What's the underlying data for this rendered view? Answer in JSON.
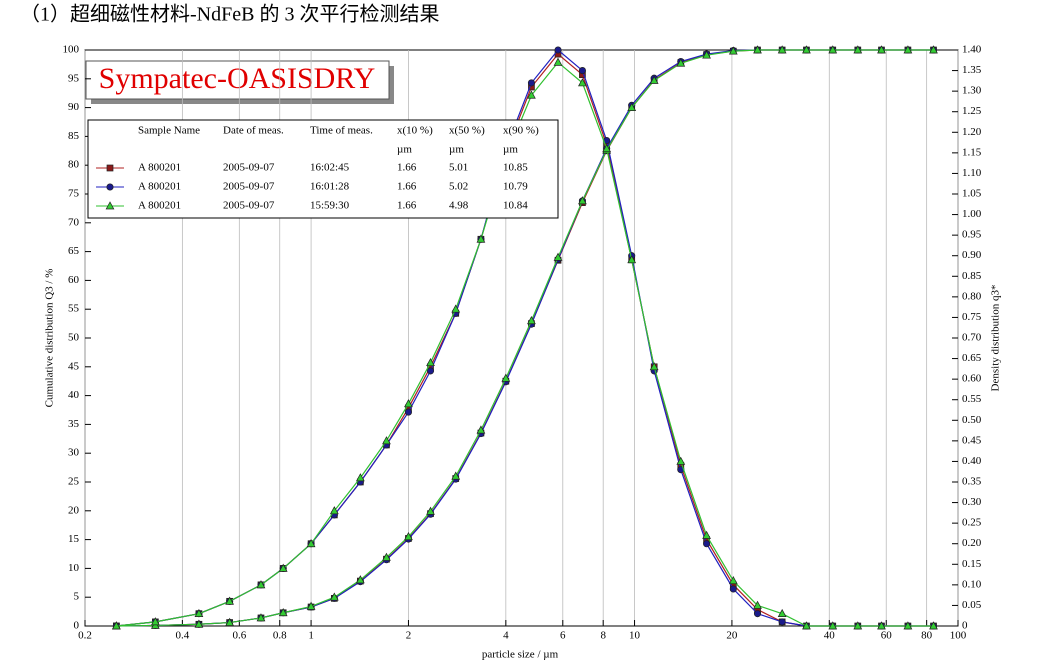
{
  "heading": "（1）超细磁性材料-NdFeB 的 3 次平行检测结果",
  "chart_data": {
    "type": "line",
    "badge": "Sympatec-OASISDRY",
    "xlabel": "particle size / µm",
    "ylabel": "Cumulative distribution Q3 / %",
    "y2label": "Density distribution q3*",
    "xscale": "log",
    "grid": true,
    "xlim": [
      0.2,
      100
    ],
    "xticks": [
      0.2,
      0.4,
      0.6,
      0.8,
      1,
      2,
      4,
      6,
      8,
      10,
      20,
      40,
      60,
      80,
      100
    ],
    "ylim": [
      0,
      100
    ],
    "yticks": [
      0,
      5,
      10,
      15,
      20,
      25,
      30,
      35,
      40,
      45,
      50,
      55,
      60,
      65,
      70,
      75,
      80,
      85,
      90,
      95,
      100
    ],
    "y2lim": [
      0,
      1.4
    ],
    "y2ticks": [
      0,
      0.05,
      {
        "value": 0.1,
        "label": "0.10"
      },
      0.15,
      {
        "value": 0.2,
        "label": "0.20"
      },
      0.25,
      {
        "value": 0.3,
        "label": "0.30"
      },
      0.35,
      {
        "value": 0.4,
        "label": "0.40"
      },
      0.45,
      {
        "value": 0.5,
        "label": "0.50"
      },
      0.55,
      {
        "value": 0.6,
        "label": "0.60"
      },
      0.65,
      {
        "value": 0.7,
        "label": "0.70"
      },
      0.75,
      {
        "value": 0.8,
        "label": "0.80"
      },
      0.85,
      {
        "value": 0.9,
        "label": "0.90"
      },
      0.95,
      {
        "value": 1,
        "label": "1.00"
      },
      1.05,
      {
        "value": 1.1,
        "label": "1.10"
      },
      1.15,
      {
        "value": 1.2,
        "label": "1.20"
      },
      1.25,
      {
        "value": 1.3,
        "label": "1.30"
      },
      1.35,
      {
        "value": 1.4,
        "label": "1.40"
      }
    ],
    "x": [
      0.25,
      0.33,
      0.45,
      0.56,
      0.7,
      0.82,
      1.0,
      1.18,
      1.42,
      1.71,
      2.0,
      2.34,
      2.8,
      3.35,
      4.0,
      4.8,
      5.8,
      6.9,
      8.2,
      9.8,
      11.5,
      13.9,
      16.7,
      20.2,
      24,
      28.6,
      34,
      41,
      49,
      58,
      70,
      84
    ],
    "legend_columns": [
      "Sample Name",
      "Date of meas.",
      "Time of meas.",
      "x(10 %)",
      "x(50 %)",
      "x(90 %)"
    ],
    "legend_units": [
      "µm",
      "µm",
      "µm"
    ],
    "samples": [
      {
        "name": "A 800201",
        "date": "2005-09-07",
        "time": "16:02:45",
        "x10": 1.66,
        "x50": 5.01,
        "x90": 10.85,
        "color": "#b02020",
        "marker": "square",
        "marker_color": "#8b1a1a",
        "cumulative": [
          0,
          0.1,
          0.3,
          0.6,
          1.4,
          2.3,
          3.3,
          4.8,
          7.8,
          11.6,
          15.2,
          19.5,
          25.6,
          33.5,
          42.5,
          52.5,
          63.5,
          73.5,
          82.5,
          90,
          94.8,
          97.8,
          99.2,
          99.8,
          100,
          100,
          100,
          100,
          100,
          100,
          100,
          100
        ],
        "density": [
          0,
          0.01,
          0.03,
          0.06,
          0.1,
          0.14,
          0.2,
          0.27,
          0.35,
          0.44,
          0.53,
          0.63,
          0.76,
          0.94,
          1.15,
          1.31,
          1.39,
          1.34,
          1.17,
          0.89,
          0.63,
          0.39,
          0.21,
          0.1,
          0.04,
          0.01,
          0,
          0,
          0,
          0,
          0,
          0
        ]
      },
      {
        "name": "A 800201",
        "date": "2005-09-07",
        "time": "16:01:28",
        "x10": 1.66,
        "x50": 5.02,
        "x90": 10.79,
        "color": "#2020c0",
        "marker": "circle",
        "marker_color": "#1a1a8b",
        "cumulative": [
          0,
          0.1,
          0.3,
          0.6,
          1.4,
          2.3,
          3.3,
          4.8,
          7.7,
          11.5,
          15.1,
          19.4,
          25.5,
          33.4,
          42.4,
          52.4,
          63.6,
          73.8,
          82.9,
          90.4,
          95.1,
          98,
          99.3,
          99.9,
          100,
          100,
          100,
          100,
          100,
          100,
          100,
          100
        ],
        "density": [
          0,
          0.01,
          0.03,
          0.06,
          0.1,
          0.14,
          0.2,
          0.27,
          0.35,
          0.44,
          0.52,
          0.62,
          0.76,
          0.94,
          1.16,
          1.32,
          1.4,
          1.35,
          1.18,
          0.9,
          0.62,
          0.38,
          0.2,
          0.09,
          0.03,
          0.01,
          0,
          0,
          0,
          0,
          0,
          0
        ]
      },
      {
        "name": "A 800201",
        "date": "2005-09-07",
        "time": "15:59:30",
        "x10": 1.66,
        "x50": 4.98,
        "x90": 10.84,
        "color": "#30c030",
        "marker": "triangle",
        "marker_color": "#33cc33",
        "cumulative": [
          0,
          0.1,
          0.3,
          0.6,
          1.4,
          2.3,
          3.4,
          5,
          8,
          11.9,
          15.5,
          19.9,
          26,
          34,
          43,
          53,
          64,
          73.8,
          82.6,
          90,
          94.7,
          97.7,
          99.1,
          99.8,
          100,
          100,
          100,
          100,
          100,
          100,
          100,
          100
        ],
        "density": [
          0,
          0.01,
          0.03,
          0.06,
          0.1,
          0.14,
          0.2,
          0.28,
          0.36,
          0.45,
          0.54,
          0.64,
          0.77,
          0.94,
          1.14,
          1.29,
          1.37,
          1.32,
          1.16,
          0.89,
          0.63,
          0.4,
          0.22,
          0.11,
          0.05,
          0.03,
          0,
          0,
          0,
          0,
          0,
          0
        ]
      }
    ]
  }
}
